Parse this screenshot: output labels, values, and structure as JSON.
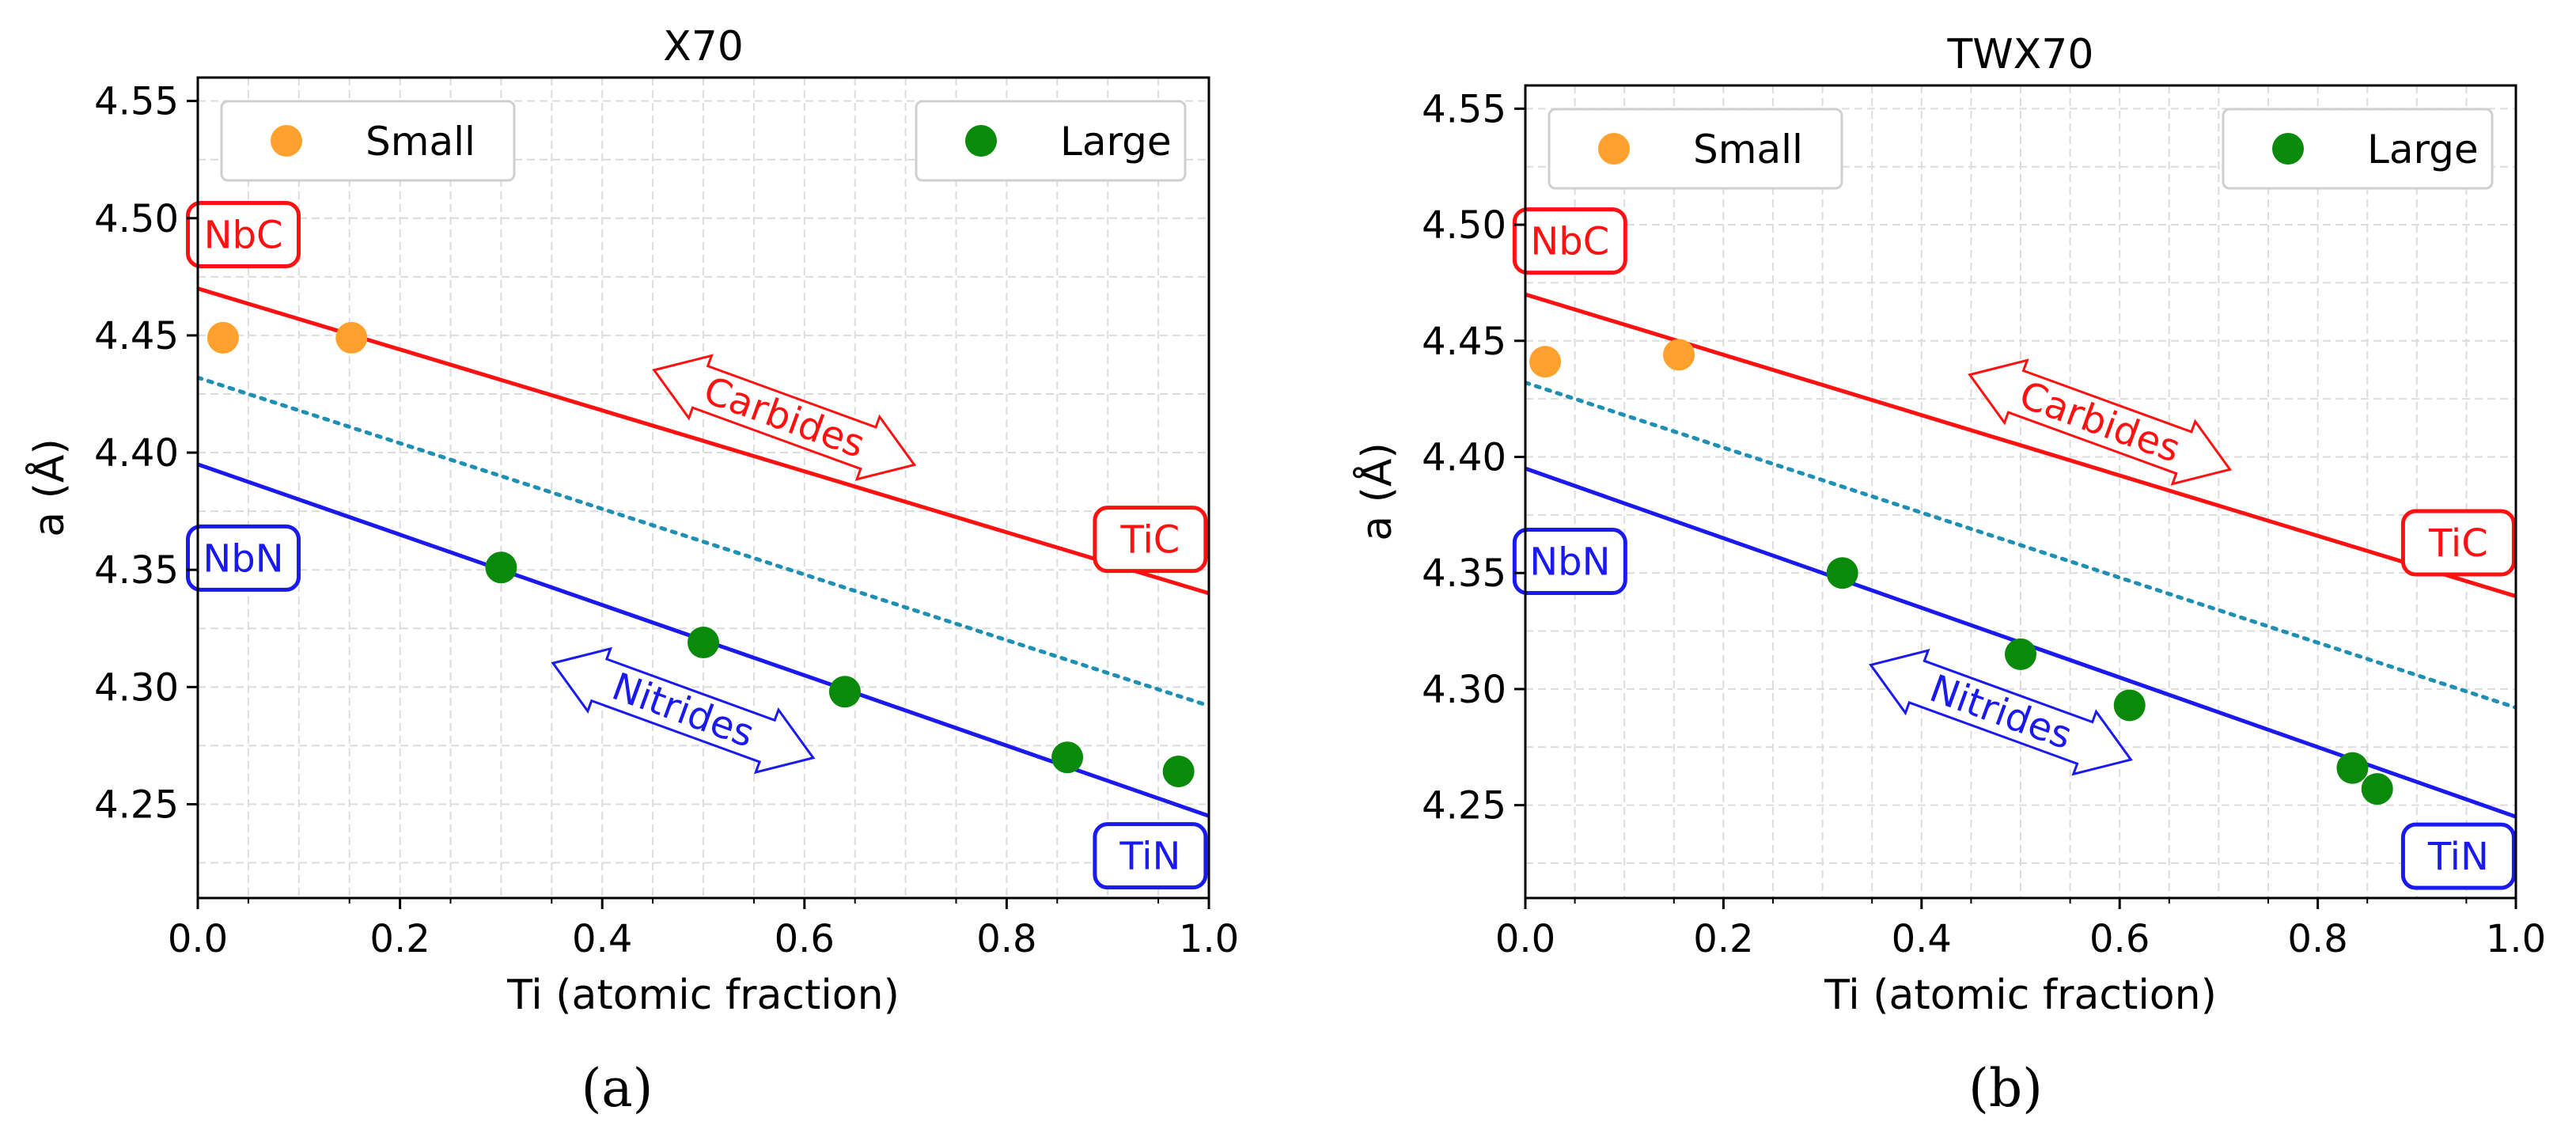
{
  "chart_data": [
    {
      "type": "scatter",
      "title": "X70",
      "xlabel": "Ti (atomic fraction)",
      "ylabel": "a (Å)",
      "xlim": [
        0.0,
        1.0
      ],
      "ylim": [
        4.21,
        4.56
      ],
      "xticks": [
        "0.0",
        "0.2",
        "0.4",
        "0.6",
        "0.8",
        "1.0"
      ],
      "yticks": [
        "4.25",
        "4.30",
        "4.35",
        "4.40",
        "4.45",
        "4.50",
        "4.55"
      ],
      "grid": true,
      "panel_label": "(a)",
      "legend": [
        {
          "name": "Small",
          "color": "#ffa12c",
          "position": "top-left"
        },
        {
          "name": "Large",
          "color": "#0a8a0a",
          "position": "top-right"
        }
      ],
      "series": [
        {
          "name": "Small",
          "color": "#ffa12c",
          "x": [
            0.025,
            0.152
          ],
          "y": [
            4.449,
            4.449
          ]
        },
        {
          "name": "Large",
          "color": "#0a8a0a",
          "x": [
            0.3,
            0.5,
            0.64,
            0.86,
            0.97
          ],
          "y": [
            4.351,
            4.319,
            4.298,
            4.27,
            4.264
          ]
        }
      ],
      "reference_lines": [
        {
          "name": "carbide-line",
          "color": "#ff1111",
          "style": "solid",
          "x": [
            0,
            1
          ],
          "y": [
            4.47,
            4.34
          ]
        },
        {
          "name": "midline",
          "color": "#1f8fb4",
          "style": "dotted",
          "x": [
            0,
            1
          ],
          "y": [
            4.432,
            4.292
          ]
        },
        {
          "name": "nitride-line",
          "color": "#1a1aee",
          "style": "solid",
          "x": [
            0,
            1
          ],
          "y": [
            4.395,
            4.245
          ]
        }
      ],
      "boxes": [
        {
          "text": "NbC",
          "color": "#ff1111",
          "x": 0.045,
          "y": 4.493
        },
        {
          "text": "TiC",
          "color": "#ff1111",
          "x": 0.942,
          "y": 4.363
        },
        {
          "text": "NbN",
          "color": "#1a1aee",
          "x": 0.045,
          "y": 4.355
        },
        {
          "text": "TiN",
          "color": "#1a1aee",
          "x": 0.942,
          "y": 4.228
        }
      ],
      "arrows": [
        {
          "text": "Carbides",
          "color": "#ff1111",
          "x": 0.58,
          "y": 4.415,
          "rotation": 20
        },
        {
          "text": "Nitrides",
          "color": "#1a1aee",
          "x": 0.48,
          "y": 4.29,
          "rotation": 20
        }
      ]
    },
    {
      "type": "scatter",
      "title": "TWX70",
      "xlabel": "Ti (atomic fraction)",
      "ylabel": "a (Å)",
      "xlim": [
        0.0,
        1.0
      ],
      "ylim": [
        4.21,
        4.56
      ],
      "xticks": [
        "0.0",
        "0.2",
        "0.4",
        "0.6",
        "0.8",
        "1.0"
      ],
      "yticks": [
        "4.25",
        "4.30",
        "4.35",
        "4.40",
        "4.45",
        "4.50",
        "4.55"
      ],
      "grid": true,
      "panel_label": "(b)",
      "legend": [
        {
          "name": "Small",
          "color": "#ffa12c",
          "position": "top-left"
        },
        {
          "name": "Large",
          "color": "#0a8a0a",
          "position": "top-right"
        }
      ],
      "series": [
        {
          "name": "Small",
          "color": "#ffa12c",
          "x": [
            0.02,
            0.155
          ],
          "y": [
            4.441,
            4.444
          ]
        },
        {
          "name": "Large",
          "color": "#0a8a0a",
          "x": [
            0.32,
            0.5,
            0.61,
            0.835,
            0.86
          ],
          "y": [
            4.35,
            4.315,
            4.293,
            4.266,
            4.257
          ]
        }
      ],
      "reference_lines": [
        {
          "name": "carbide-line",
          "color": "#ff1111",
          "style": "solid",
          "x": [
            0,
            1
          ],
          "y": [
            4.47,
            4.34
          ]
        },
        {
          "name": "midline",
          "color": "#1f8fb4",
          "style": "dotted",
          "x": [
            0,
            1
          ],
          "y": [
            4.432,
            4.292
          ]
        },
        {
          "name": "nitride-line",
          "color": "#1a1aee",
          "style": "solid",
          "x": [
            0,
            1
          ],
          "y": [
            4.395,
            4.245
          ]
        }
      ],
      "boxes": [
        {
          "text": "NbC",
          "color": "#ff1111",
          "x": 0.045,
          "y": 4.493
        },
        {
          "text": "TiC",
          "color": "#ff1111",
          "x": 0.942,
          "y": 4.363
        },
        {
          "text": "NbN",
          "color": "#1a1aee",
          "x": 0.045,
          "y": 4.355
        },
        {
          "text": "TiN",
          "color": "#1a1aee",
          "x": 0.942,
          "y": 4.228
        }
      ],
      "arrows": [
        {
          "text": "Carbides",
          "color": "#ff1111",
          "x": 0.58,
          "y": 4.415,
          "rotation": 20
        },
        {
          "text": "Nitrides",
          "color": "#1a1aee",
          "x": 0.48,
          "y": 4.29,
          "rotation": 20
        }
      ]
    }
  ]
}
